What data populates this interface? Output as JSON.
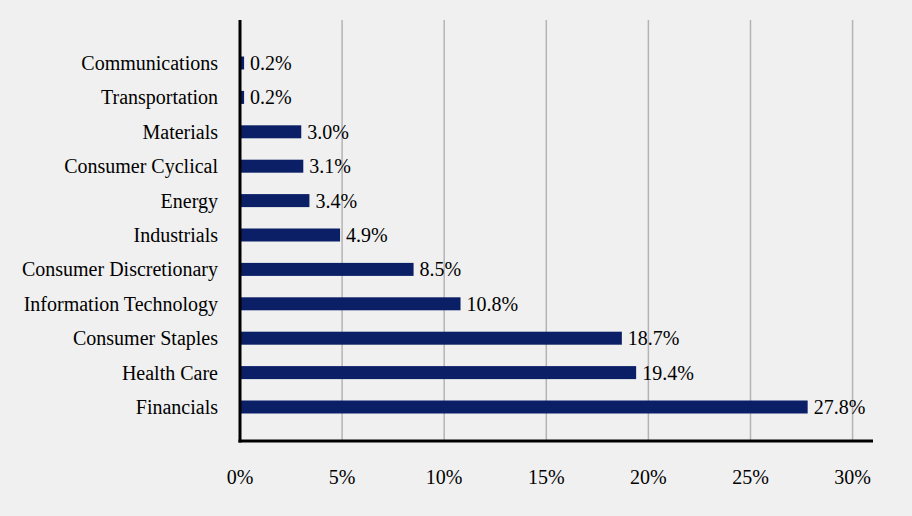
{
  "chart_data": {
    "type": "bar",
    "orientation": "horizontal",
    "categories": [
      "Communications",
      "Transportation",
      "Materials",
      "Consumer Cyclical",
      "Energy",
      "Industrials",
      "Consumer Discretionary",
      "Information Technology",
      "Consumer Staples",
      "Health Care",
      "Financials"
    ],
    "values": [
      0.2,
      0.2,
      3.0,
      3.1,
      3.4,
      4.9,
      8.5,
      10.8,
      18.7,
      19.4,
      27.8
    ],
    "value_labels": [
      "0.2%",
      "0.2%",
      "3.0%",
      "3.1%",
      "3.4%",
      "4.9%",
      "8.5%",
      "10.8%",
      "18.7%",
      "19.4%",
      "27.8%"
    ],
    "color": "#0a1f66",
    "xlim": [
      0,
      31
    ],
    "xticks": [
      {
        "value": 0,
        "label": "0%"
      },
      {
        "value": 5,
        "label": "5%"
      },
      {
        "value": 10,
        "label": "10%"
      },
      {
        "value": 15,
        "label": "15%"
      },
      {
        "value": 20,
        "label": "20%"
      },
      {
        "value": 25,
        "label": "25%"
      },
      {
        "value": 30,
        "label": "30%"
      }
    ],
    "grid": true,
    "data_labels": true
  }
}
